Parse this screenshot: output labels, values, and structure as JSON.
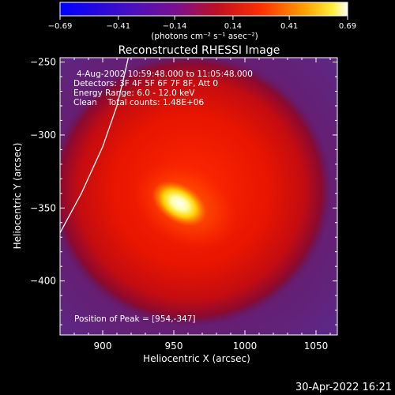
{
  "colorbar": {
    "tick_labels": [
      "−0.69",
      "−0.41",
      "−0.14",
      "0.14",
      "0.41",
      "0.69"
    ],
    "tick_values": [
      -0.69,
      -0.41,
      -0.14,
      0.14,
      0.41,
      0.69
    ],
    "range": [
      -0.69,
      0.69
    ],
    "units_label": "(photons cm⁻² s⁻¹ asec⁻²)"
  },
  "chart_data": {
    "type": "heatmap",
    "title": "Reconstructed RHESSI Image",
    "xlabel": "Heliocentric X (arcsec)",
    "ylabel": "Heliocentric Y (arcsec)",
    "xlim": [
      870,
      1065
    ],
    "ylim": [
      -437,
      -247
    ],
    "x_ticks": [
      900,
      950,
      1000,
      1050
    ],
    "y_ticks": [
      -250,
      -300,
      -350,
      -400
    ],
    "x_tick_labels": [
      "900",
      "950",
      "1000",
      "1050"
    ],
    "y_tick_labels": [
      "−250",
      "−300",
      "−350",
      "−400"
    ],
    "annotations": [
      "4-Aug-2002 10:59:48.000 to 11:05:48.000",
      "Detectors: 3F 4F 5F 6F 7F 8F, Att 0",
      "Energy Range: 6.0 - 12.0 keV",
      "Clean    Total counts: 1.48E+06"
    ],
    "peak_label": "Position of Peak = [954,-347]",
    "peak": [
      954,
      -347
    ],
    "source_center": [
      962,
      -338
    ],
    "limb_curve": [
      [
        870,
        -367
      ],
      [
        885,
        -340
      ],
      [
        900,
        -308
      ],
      [
        910,
        -280
      ],
      [
        915,
        -260
      ],
      [
        918,
        -247
      ]
    ],
    "colormap": "hot: purple to red to yellow to white"
  },
  "footer": {
    "timestamp": "30-Apr-2022 16:21"
  }
}
